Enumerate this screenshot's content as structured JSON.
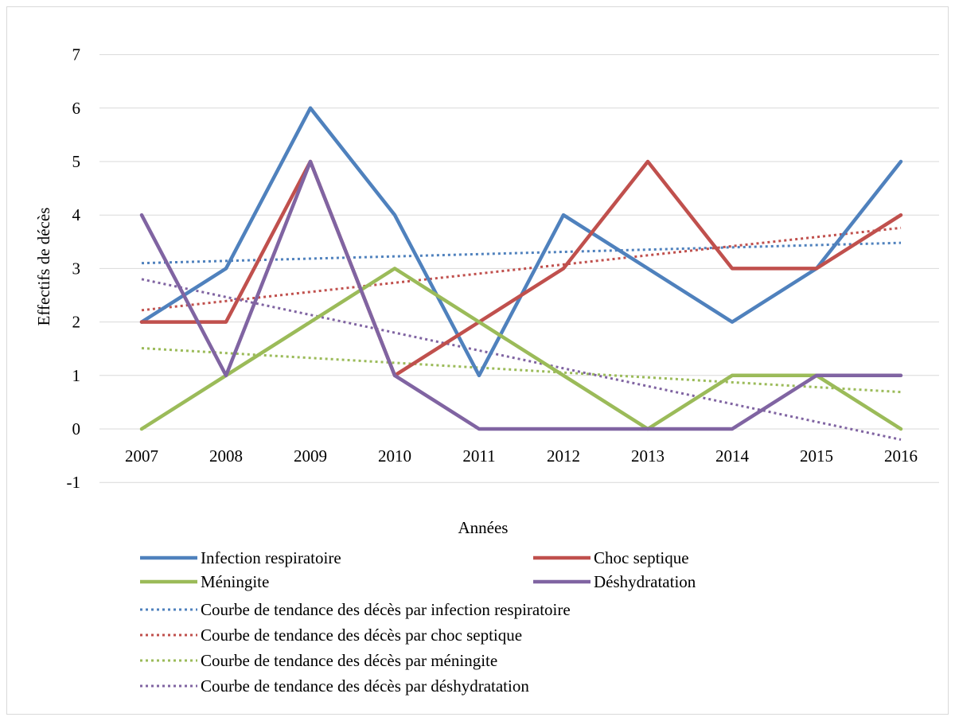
{
  "chart_data": {
    "type": "line",
    "title": "",
    "xlabel": "Années",
    "ylabel": "Effectifs de décès",
    "ylim": [
      -1,
      7
    ],
    "yticks": [
      -1,
      0,
      1,
      2,
      3,
      4,
      5,
      6,
      7
    ],
    "grid": true,
    "legend_position": "bottom",
    "categories": [
      "2007",
      "2008",
      "2009",
      "2010",
      "2011",
      "2012",
      "2013",
      "2014",
      "2015",
      "2016"
    ],
    "series": [
      {
        "name": "Infection respiratoire",
        "color": "#4F81BD",
        "values": [
          2,
          3,
          6,
          4,
          1,
          4,
          3,
          2,
          3,
          5
        ]
      },
      {
        "name": "Choc septique",
        "color": "#C0504D",
        "values": [
          2,
          2,
          5,
          1,
          2,
          3,
          5,
          3,
          3,
          4
        ]
      },
      {
        "name": "Méningite",
        "color": "#9BBB59",
        "values": [
          0,
          1,
          2,
          3,
          2,
          1,
          0,
          1,
          1,
          0
        ]
      },
      {
        "name": "Déshydratation",
        "color": "#8064A2",
        "values": [
          4,
          1,
          5,
          1,
          0,
          0,
          0,
          0,
          1,
          1
        ]
      }
    ],
    "trendlines": [
      {
        "name": "Courbe de tendance des décès par infection respiratoire",
        "color": "#4F81BD",
        "values": [
          3.1,
          3.48
        ]
      },
      {
        "name": "Courbe de tendance des décès par choc septique",
        "color": "#C0504D",
        "values": [
          2.22,
          3.76
        ]
      },
      {
        "name": "Courbe de tendance des décès par méningite",
        "color": "#9BBB59",
        "values": [
          1.51,
          0.69
        ]
      },
      {
        "name": "Courbe de tendance des décès par déshydratation",
        "color": "#8064A2",
        "values": [
          2.8,
          -0.2
        ]
      }
    ]
  }
}
